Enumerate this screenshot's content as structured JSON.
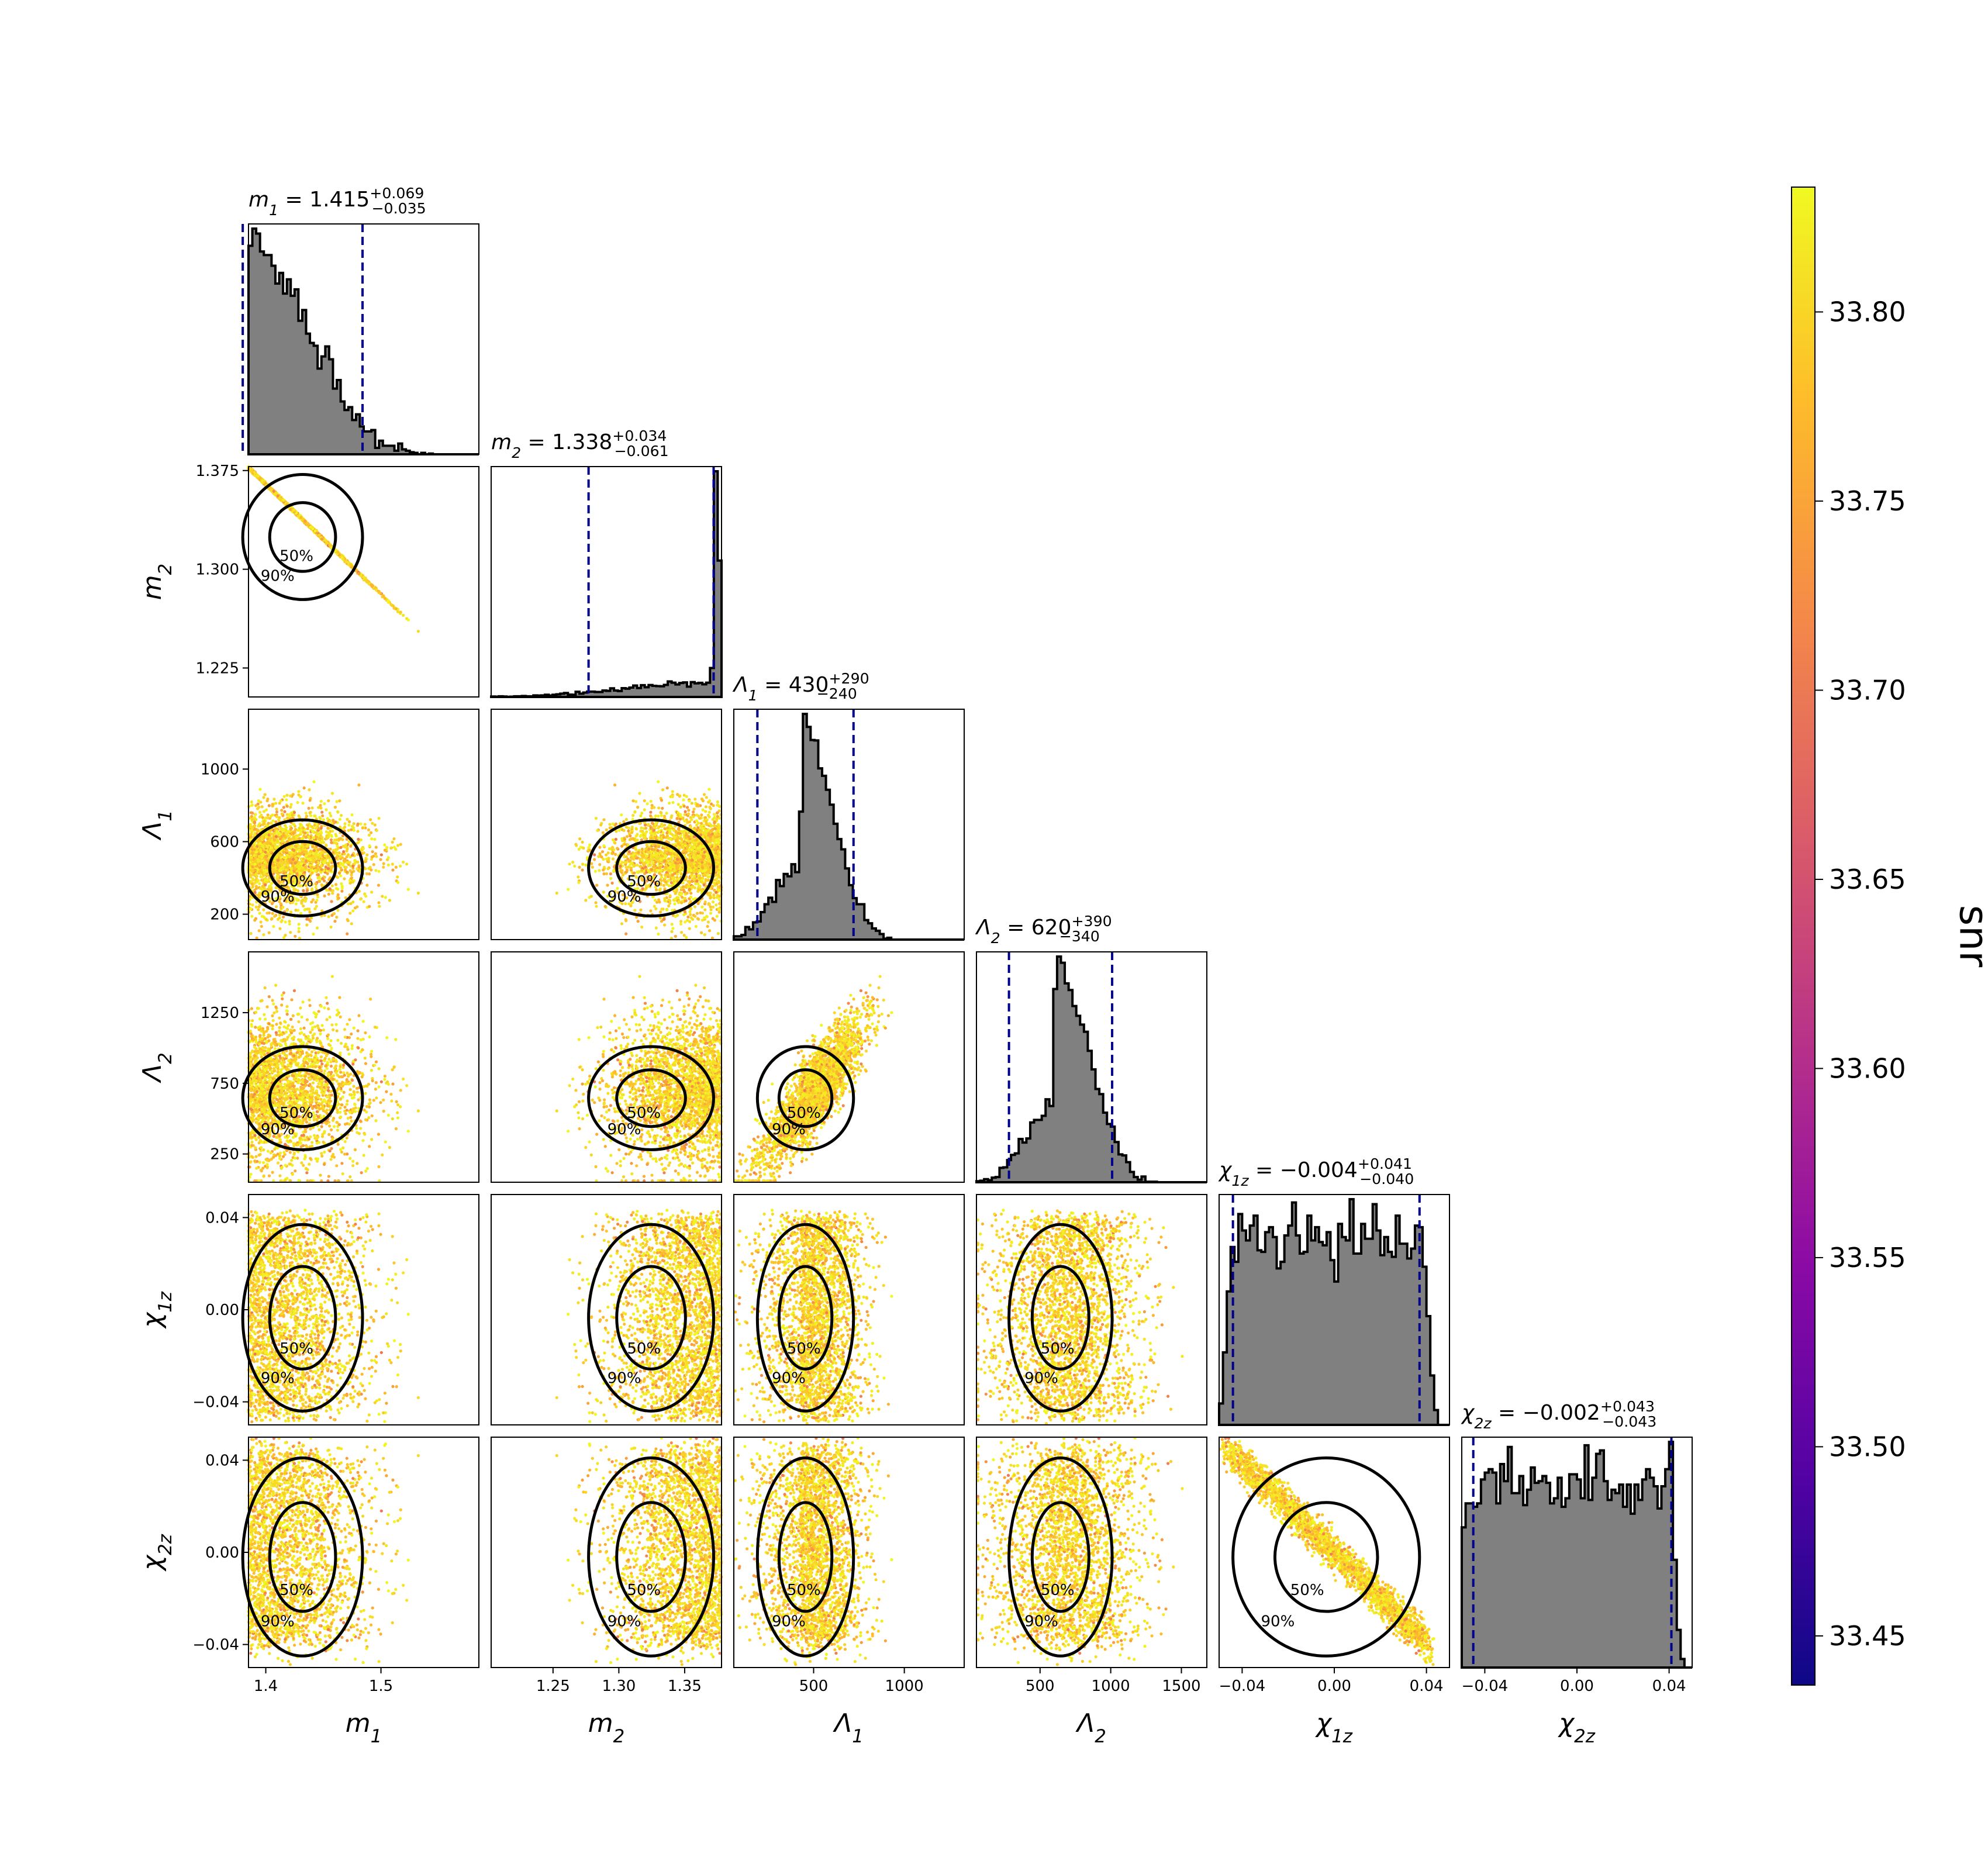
{
  "chart_data": {
    "type": "scatter",
    "subtype": "corner plot (posterior samples with marginal histograms)",
    "parameters": [
      {
        "key": "m1",
        "label": "m",
        "sub": "1",
        "range": [
          1.385,
          1.585
        ],
        "ticks": [
          1.4,
          1.5
        ],
        "ticklabels": [
          "1.4",
          "1.5"
        ]
      },
      {
        "key": "m2",
        "label": "m",
        "sub": "2",
        "range": [
          1.203,
          1.378
        ],
        "ticks": [
          1.225,
          1.3,
          1.375
        ],
        "ticklabels": [
          "1.225",
          "1.300",
          "1.375"
        ],
        "xticks": [
          1.25,
          1.3,
          1.35
        ],
        "xticklabels": [
          "1.25",
          "1.30",
          "1.35"
        ]
      },
      {
        "key": "L1",
        "label": "Λ",
        "sub": "1",
        "range": [
          60,
          1330
        ],
        "ticks": [
          200,
          600,
          1000
        ],
        "ticklabels": [
          "200",
          "600",
          "1000"
        ],
        "xticks": [
          500,
          1000
        ],
        "xticklabels": [
          "500",
          "1000"
        ]
      },
      {
        "key": "L2",
        "label": "Λ",
        "sub": "2",
        "range": [
          50,
          1680
        ],
        "ticks": [
          250,
          750,
          1250
        ],
        "ticklabels": [
          "250",
          "750",
          "1250"
        ],
        "xticks": [
          500,
          1000,
          1500
        ],
        "xticklabels": [
          "500",
          "1000",
          "1500"
        ]
      },
      {
        "key": "chi1z",
        "label": "χ",
        "sub": "1z",
        "range": [
          -0.05,
          0.05
        ],
        "ticks": [
          -0.04,
          0.0,
          0.04
        ],
        "ticklabels": [
          "−0.04",
          "0.00",
          "0.04"
        ]
      },
      {
        "key": "chi2z",
        "label": "χ",
        "sub": "2z",
        "range": [
          -0.05,
          0.05
        ],
        "ticks": [
          -0.04,
          0.0,
          0.04
        ],
        "ticklabels": [
          "−0.04",
          "0.00",
          "0.04"
        ]
      }
    ],
    "marginals": [
      {
        "param": "m1",
        "title_name": "m",
        "title_sub": "1",
        "median": "1.415",
        "plus": "+0.069",
        "minus": "−0.035",
        "lower": 1.38,
        "upper": 1.484
      },
      {
        "param": "m2",
        "title_name": "m",
        "title_sub": "2",
        "median": "1.338",
        "plus": "+0.034",
        "minus": "−0.061",
        "lower": 1.277,
        "upper": 1.372
      },
      {
        "param": "L1",
        "title_name": "Λ",
        "title_sub": "1",
        "median": "430",
        "plus": "+290",
        "minus": "−240",
        "lower": 190,
        "upper": 720
      },
      {
        "param": "L2",
        "title_name": "Λ",
        "title_sub": "2",
        "median": "620",
        "plus": "+390",
        "minus": "−340",
        "lower": 280,
        "upper": 1010
      },
      {
        "param": "chi1z",
        "title_name": "χ",
        "title_sub": "1z",
        "median": "−0.004",
        "plus": "+0.041",
        "minus": "−0.040",
        "lower": -0.044,
        "upper": 0.037
      },
      {
        "param": "chi2z",
        "title_name": "χ",
        "title_sub": "2z",
        "median": "−0.002",
        "plus": "+0.043",
        "minus": "−0.043",
        "lower": -0.045,
        "upper": 0.041
      }
    ],
    "histogram_shapes": {
      "m1": {
        "kind": "skew",
        "peak": 1.383,
        "left_width": 0.004,
        "right_width": 0.05
      },
      "m2": {
        "kind": "skew",
        "peak": 1.372,
        "left_width": 0.06,
        "right_width": 0.004
      },
      "L1": {
        "kind": "skew",
        "peak": 430,
        "left_width": 140,
        "right_width": 165
      },
      "L2": {
        "kind": "skew",
        "peak": 600,
        "left_width": 185,
        "right_width": 225
      },
      "chi1z": {
        "kind": "flat",
        "low": -0.047,
        "high": 0.041
      },
      "chi2z": {
        "kind": "flat",
        "low": -0.05,
        "high": 0.043
      }
    },
    "contour_levels": [
      "50%",
      "90%"
    ],
    "colorbar": {
      "label": "snr",
      "colormap": "plasma",
      "range": [
        33.437,
        33.833
      ],
      "ticks": [
        33.45,
        33.5,
        33.55,
        33.6,
        33.65,
        33.7,
        33.75,
        33.8
      ],
      "ticklabels": [
        "33.45",
        "33.50",
        "33.55",
        "33.60",
        "33.65",
        "33.70",
        "33.75",
        "33.80"
      ]
    },
    "colors": {
      "histogram_fill": "#808080",
      "histogram_edge": "#000000",
      "quantile_lines": "#00008b",
      "contour_lines": "#000000",
      "plasma": [
        "#0d0887",
        "#5302a3",
        "#8b0aa5",
        "#b83289",
        "#db5c68",
        "#f48849",
        "#febd2a",
        "#f0f921"
      ]
    },
    "grid": false,
    "legend": "none"
  }
}
